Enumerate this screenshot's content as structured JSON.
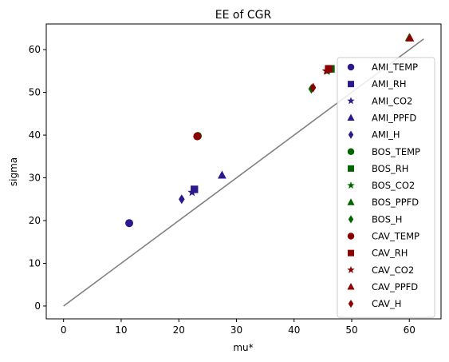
{
  "chart_data": {
    "type": "scatter",
    "title": "EE of CGR",
    "xlabel": "mu*",
    "ylabel": "sigma",
    "xlim": [
      -3,
      65.5
    ],
    "ylim": [
      -3,
      66
    ],
    "xticks": [
      0,
      10,
      20,
      30,
      40,
      50,
      60
    ],
    "yticks": [
      0,
      10,
      20,
      30,
      40,
      50,
      60
    ],
    "grid": false,
    "legend_position": "right",
    "reference_line": {
      "x": [
        0,
        62.5
      ],
      "y": [
        0,
        62.5
      ],
      "color": "#808080"
    },
    "series": [
      {
        "name": "AMI_TEMP",
        "marker": "circle",
        "color": "#2a1a8c",
        "x": 11.4,
        "y": 19.4
      },
      {
        "name": "AMI_RH",
        "marker": "square",
        "color": "#2a1a8c",
        "x": 22.7,
        "y": 27.3
      },
      {
        "name": "AMI_CO2",
        "marker": "star",
        "color": "#2a1a8c",
        "x": 22.3,
        "y": 26.6
      },
      {
        "name": "AMI_PPFD",
        "marker": "triangle",
        "color": "#2a1a8c",
        "x": 27.5,
        "y": 30.6
      },
      {
        "name": "AMI_H",
        "marker": "diamond",
        "color": "#2a1a8c",
        "x": 20.5,
        "y": 25.0
      },
      {
        "name": "BOS_TEMP",
        "marker": "circle",
        "color": "#006400",
        "x": 23.3,
        "y": 39.8
      },
      {
        "name": "BOS_RH",
        "marker": "square",
        "color": "#006400",
        "x": 46.4,
        "y": 55.5
      },
      {
        "name": "BOS_CO2",
        "marker": "star",
        "color": "#006400",
        "x": 45.8,
        "y": 55.0
      },
      {
        "name": "BOS_PPFD",
        "marker": "triangle",
        "color": "#006400",
        "x": 60.0,
        "y": 62.8
      },
      {
        "name": "BOS_H",
        "marker": "diamond",
        "color": "#006400",
        "x": 43.0,
        "y": 50.8
      },
      {
        "name": "CAV_TEMP",
        "marker": "circle",
        "color": "#8b0000",
        "x": 23.2,
        "y": 39.7
      },
      {
        "name": "CAV_RH",
        "marker": "square",
        "color": "#8b0000",
        "x": 46.0,
        "y": 55.5
      },
      {
        "name": "CAV_CO2",
        "marker": "star",
        "color": "#8b0000",
        "x": 45.6,
        "y": 55.0
      },
      {
        "name": "CAV_PPFD",
        "marker": "triangle",
        "color": "#8b0000",
        "x": 60.1,
        "y": 62.7
      },
      {
        "name": "CAV_H",
        "marker": "diamond",
        "color": "#8b0000",
        "x": 43.3,
        "y": 51.1
      }
    ]
  }
}
